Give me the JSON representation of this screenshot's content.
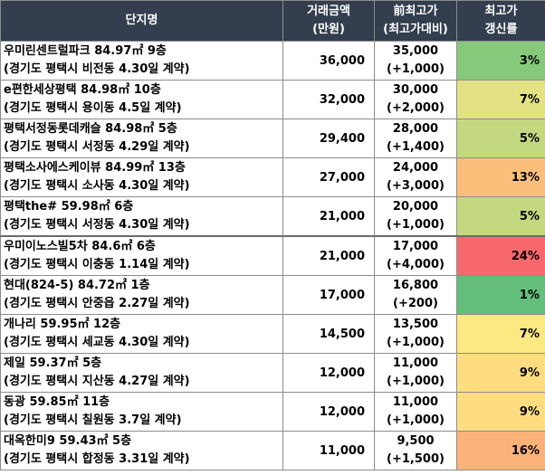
{
  "header": {
    "col_name": "단지명",
    "col_amount_l1": "거래금액",
    "col_amount_l2": "(만원)",
    "col_prev_l1": "前최고가",
    "col_prev_l2": "(최고가대비)",
    "col_rate_l1": "최고가",
    "col_rate_l2": "갱신률"
  },
  "colors": {
    "header_bg": "#333f4f",
    "rate_scale": [
      "#63be7b",
      "#f8696b"
    ]
  },
  "rows": [
    {
      "name_l1": "우미린센트럴파크 84.97㎡ 9층",
      "name_l2": "(경기도 평택시 비전동 4.30일 계약)",
      "amount": "36,000",
      "prev": "35,000",
      "diff": "(+1,000)",
      "rate": "3%",
      "color": "#86c97b"
    },
    {
      "name_l1": "e편한세상평택 84.98㎡ 10층",
      "name_l2": "(경기도 평택시 용이동 4.5일 계약)",
      "amount": "32,000",
      "prev": "30,000",
      "diff": "(+2,000)",
      "rate": "7%",
      "color": "#e3e282"
    },
    {
      "name_l1": "평택서정동롯데캐슬 84.98㎡ 5층",
      "name_l2": "(경기도 평택시 서정동 4.29일 계약)",
      "amount": "29,400",
      "prev": "28,000",
      "diff": "(+1,400)",
      "rate": "5%",
      "color": "#c4d880"
    },
    {
      "name_l1": "평택소사에스케이뷰 84.99㎡ 13층",
      "name_l2": "(경기도 평택시 소사동 4.30일 계약)",
      "amount": "27,000",
      "prev": "24,000",
      "diff": "(+3,000)",
      "rate": "13%",
      "color": "#fcbe7b"
    },
    {
      "name_l1": "평택the# 59.98㎡ 6층",
      "name_l2": "(경기도 평택시 서정동 4.30일 계약)",
      "amount": "21,000",
      "prev": "20,000",
      "diff": "(+1,000)",
      "rate": "5%",
      "color": "#c4d880"
    },
    {
      "name_l1": "우미이노스빌5차 84.6㎡ 6층",
      "name_l2": "(경기도 평택시 이충동 1.14일 계약)",
      "amount": "21,000",
      "prev": "17,000",
      "diff": "(+4,000)",
      "rate": "24%",
      "color": "#f8696b"
    },
    {
      "name_l1": "현대(824-5) 84.72㎡ 1층",
      "name_l2": "(경기도 평택시 안중읍 2.27일 계약)",
      "amount": "17,000",
      "prev": "16,800",
      "diff": "(+200)",
      "rate": "1%",
      "color": "#63be7b"
    },
    {
      "name_l1": "개나리 59.95㎡ 12층",
      "name_l2": "(경기도 평택시 세교동 4.30일 계약)",
      "amount": "14,500",
      "prev": "13,500",
      "diff": "(+1,000)",
      "rate": "7%",
      "color": "#fde981"
    },
    {
      "name_l1": "제일 59.37㎡ 5층",
      "name_l2": "(경기도 평택시 지산동 4.27일 계약)",
      "amount": "12,000",
      "prev": "11,000",
      "diff": "(+1,000)",
      "rate": "9%",
      "color": "#fedd81"
    },
    {
      "name_l1": "동광 59.85㎡ 11층",
      "name_l2": "(경기도 평택시 칠원동 3.7일 계약)",
      "amount": "12,000",
      "prev": "11,000",
      "diff": "(+1,000)",
      "rate": "9%",
      "color": "#fedd81"
    },
    {
      "name_l1": "대옥한미9 59.43㎡ 5층",
      "name_l2": "(경기도 평택시 합정동 3.31일 계약)",
      "amount": "11,000",
      "prev": "9,500",
      "diff": "(+1,500)",
      "rate": "16%",
      "color": "#fbb279"
    }
  ]
}
